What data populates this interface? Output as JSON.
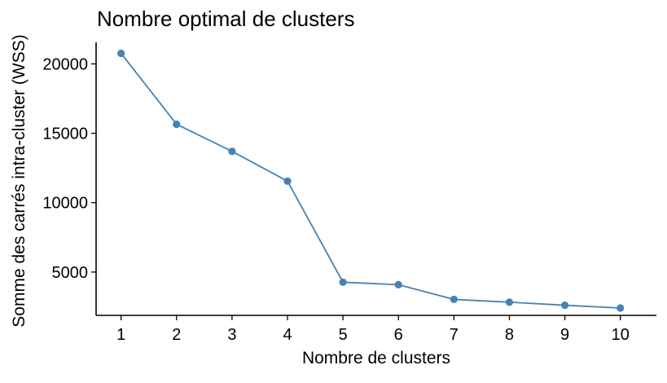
{
  "chart_data": {
    "type": "line",
    "title": "Nombre optimal de clusters",
    "xlabel": "Nombre de clusters",
    "ylabel": "Somme des carrés intra-cluster (WSS)",
    "x": [
      1,
      2,
      3,
      4,
      5,
      6,
      7,
      8,
      9,
      10
    ],
    "series": [
      {
        "values": [
          20760,
          15650,
          13700,
          11550,
          4270,
          4090,
          3030,
          2830,
          2610,
          2410
        ],
        "color": "#4682B4"
      }
    ],
    "xticks": [
      "1",
      "2",
      "3",
      "4",
      "5",
      "6",
      "7",
      "8",
      "9",
      "10"
    ],
    "yticks": [
      5000,
      10000,
      15000,
      20000
    ],
    "ytick_labels": [
      "5000",
      "10000",
      "15000",
      "20000"
    ],
    "xlim": [
      0.55,
      10.65
    ],
    "ylim": [
      1880,
      21550
    ],
    "grid": false,
    "legend": "none"
  }
}
